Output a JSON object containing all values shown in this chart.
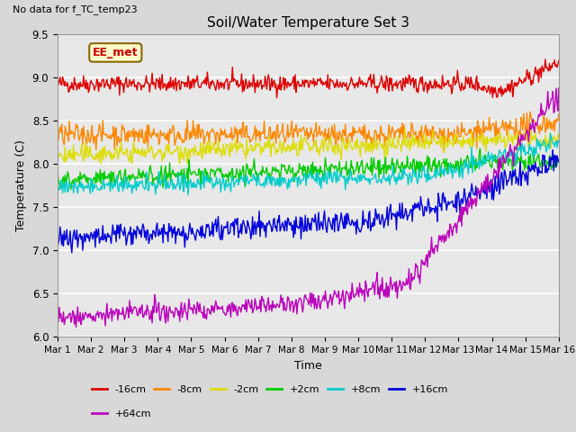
{
  "title": "Soil/Water Temperature Set 3",
  "xlabel": "Time",
  "ylabel": "Temperature (C)",
  "xlim": [
    0,
    15
  ],
  "ylim": [
    6.0,
    9.5
  ],
  "yticks": [
    6.0,
    6.5,
    7.0,
    7.5,
    8.0,
    8.5,
    9.0,
    9.5
  ],
  "xtick_labels": [
    "Mar 1",
    "Mar 2",
    "Mar 3",
    "Mar 4",
    "Mar 5",
    "Mar 6",
    "Mar 7",
    "Mar 8",
    "Mar 9",
    "Mar 10",
    "Mar 11",
    "Mar 12",
    "Mar 13",
    "Mar 14",
    "Mar 15",
    "Mar 16"
  ],
  "no_data_text": "No data for f_TC_temp23",
  "annotation_text": "EE_met",
  "bg_color": "#d8d8d8",
  "plot_bg_color": "#e8e8e8",
  "grid_color": "#ffffff",
  "series": [
    {
      "label": "-16cm",
      "color": "#dd0000",
      "base": 8.93,
      "noise": 0.05
    },
    {
      "label": "-8cm",
      "color": "#ff8800",
      "base": 8.34,
      "noise": 0.065
    },
    {
      "label": "-2cm",
      "color": "#dddd00",
      "base": 8.1,
      "noise": 0.055
    },
    {
      "label": "+2cm",
      "color": "#00cc00",
      "base": 7.82,
      "noise": 0.055
    },
    {
      "label": "+8cm",
      "color": "#00cccc",
      "base": 7.73,
      "noise": 0.05
    },
    {
      "label": "+16cm",
      "color": "#0000dd",
      "base": 7.15,
      "noise": 0.065
    },
    {
      "label": "+64cm",
      "color": "#bb00bb",
      "base": 6.22,
      "noise": 0.06
    }
  ],
  "n_points": 600,
  "legend_colors": [
    "#dd0000",
    "#ff8800",
    "#dddd00",
    "#00cc00",
    "#00cccc",
    "#0000dd",
    "#bb00bb"
  ],
  "legend_labels": [
    "-16cm",
    "-8cm",
    "-2cm",
    "+2cm",
    "+8cm",
    "+16cm",
    "+64cm"
  ]
}
